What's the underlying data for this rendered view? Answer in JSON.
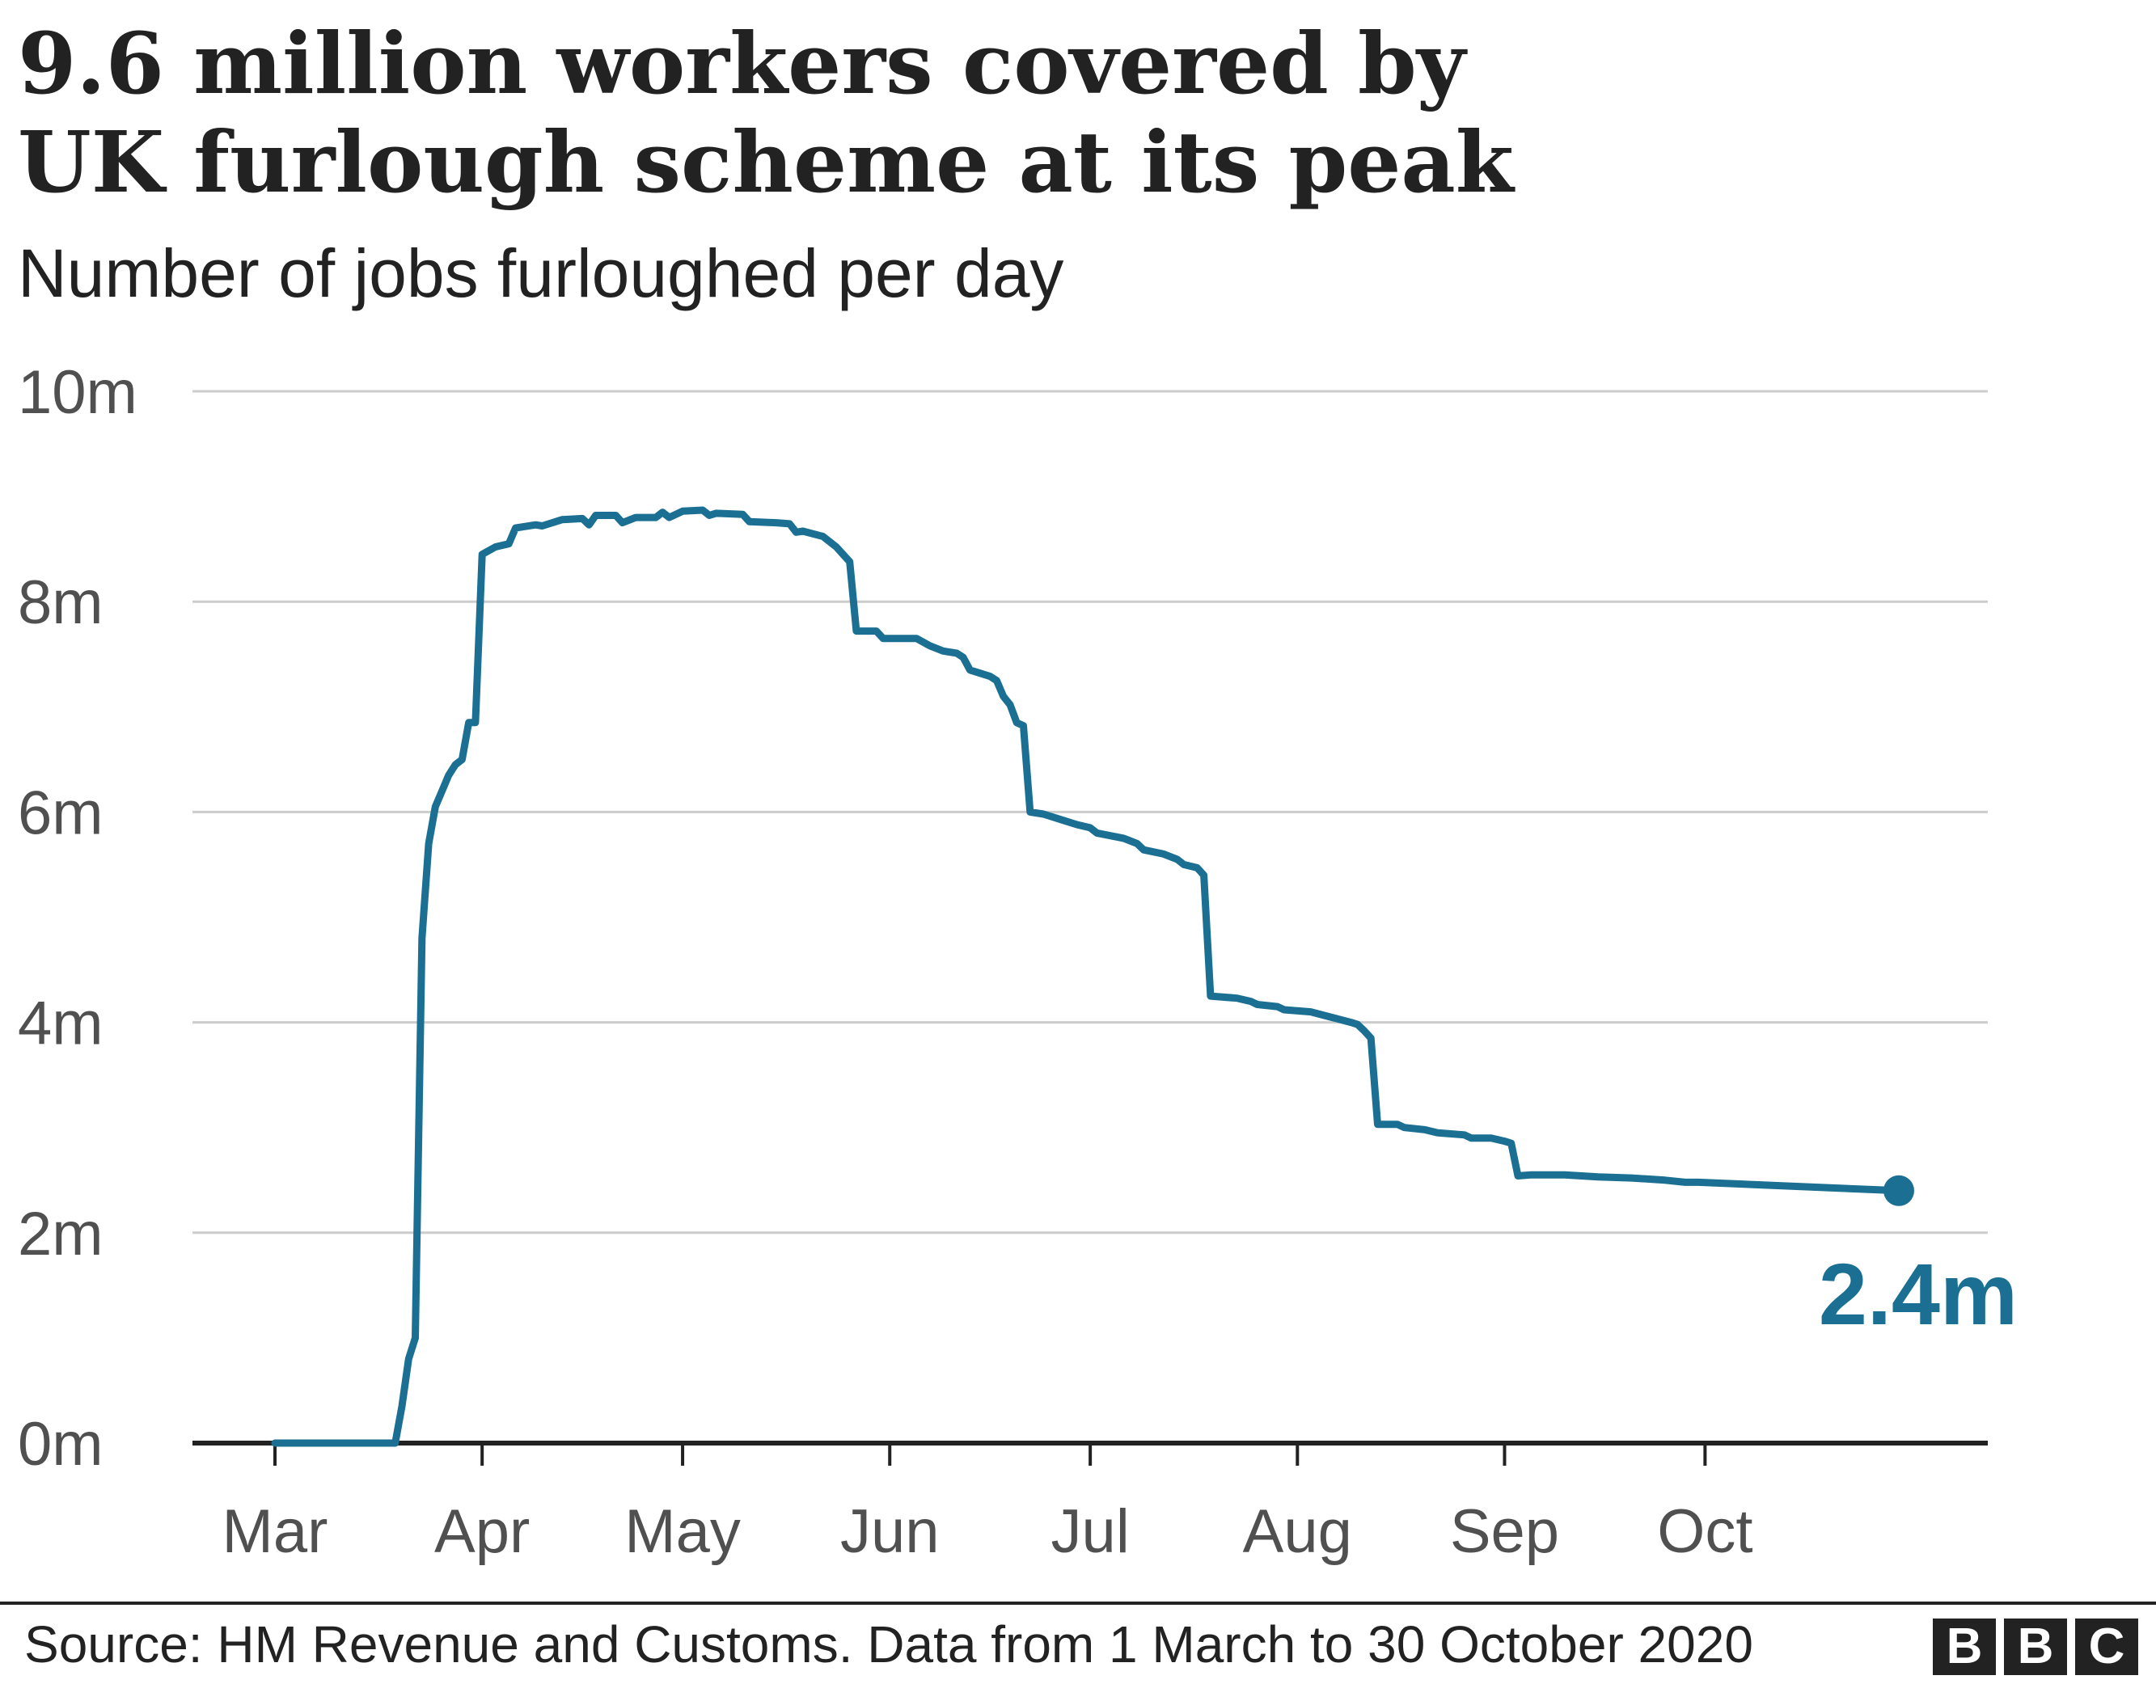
{
  "chart_data": {
    "type": "line",
    "title_lines": [
      "9.6 million workers covered by",
      "UK furlough scheme at its peak"
    ],
    "subtitle": "Number of jobs furloughed per day",
    "ylim": [
      0,
      10
    ],
    "y_ticks": [
      0,
      2,
      4,
      6,
      8,
      10
    ],
    "y_tick_labels": [
      "0m",
      "2m",
      "4m",
      "6m",
      "8m",
      "10m"
    ],
    "grid": true,
    "x_start": "2020-03-01",
    "x_end": "2020-10-30",
    "month_ticks": [
      {
        "label": "Mar",
        "date": "2020-03-01"
      },
      {
        "label": "Apr",
        "date": "2020-04-01"
      },
      {
        "label": "May",
        "date": "2020-05-01"
      },
      {
        "label": "Jun",
        "date": "2020-06-01"
      },
      {
        "label": "Jul",
        "date": "2020-07-01"
      },
      {
        "label": "Aug",
        "date": "2020-08-01"
      },
      {
        "label": "Sep",
        "date": "2020-09-01"
      },
      {
        "label": "Oct",
        "date": "2020-10-01"
      }
    ],
    "series": [
      {
        "color": "#1a6f92",
        "points": [
          [
            "2020-03-01",
            0.0
          ],
          [
            "2020-03-19",
            0.0
          ],
          [
            "2020-03-20",
            0.35
          ],
          [
            "2020-03-21",
            0.8
          ],
          [
            "2020-03-22",
            1.0
          ],
          [
            "2020-03-23",
            4.8
          ],
          [
            "2020-03-24",
            5.7
          ],
          [
            "2020-03-25",
            6.05
          ],
          [
            "2020-03-26",
            6.2
          ],
          [
            "2020-03-27",
            6.35
          ],
          [
            "2020-03-28",
            6.45
          ],
          [
            "2020-03-29",
            6.5
          ],
          [
            "2020-03-30",
            6.85
          ],
          [
            "2020-03-31",
            6.85
          ],
          [
            "2020-04-01",
            8.45
          ],
          [
            "2020-04-03",
            8.52
          ],
          [
            "2020-04-05",
            8.55
          ],
          [
            "2020-04-06",
            8.7
          ],
          [
            "2020-04-09",
            8.73
          ],
          [
            "2020-04-10",
            8.72
          ],
          [
            "2020-04-13",
            8.78
          ],
          [
            "2020-04-16",
            8.79
          ],
          [
            "2020-04-17",
            8.73
          ],
          [
            "2020-04-18",
            8.82
          ],
          [
            "2020-04-21",
            8.82
          ],
          [
            "2020-04-22",
            8.75
          ],
          [
            "2020-04-24",
            8.8
          ],
          [
            "2020-04-27",
            8.8
          ],
          [
            "2020-04-28",
            8.85
          ],
          [
            "2020-04-29",
            8.8
          ],
          [
            "2020-05-01",
            8.86
          ],
          [
            "2020-05-04",
            8.87
          ],
          [
            "2020-05-05",
            8.82
          ],
          [
            "2020-05-06",
            8.84
          ],
          [
            "2020-05-10",
            8.83
          ],
          [
            "2020-05-11",
            8.76
          ],
          [
            "2020-05-15",
            8.75
          ],
          [
            "2020-05-17",
            8.74
          ],
          [
            "2020-05-18",
            8.66
          ],
          [
            "2020-05-19",
            8.67
          ],
          [
            "2020-05-22",
            8.62
          ],
          [
            "2020-05-24",
            8.52
          ],
          [
            "2020-05-26",
            8.38
          ],
          [
            "2020-05-27",
            7.72
          ],
          [
            "2020-05-30",
            7.72
          ],
          [
            "2020-05-31",
            7.65
          ],
          [
            "2020-06-05",
            7.65
          ],
          [
            "2020-06-07",
            7.58
          ],
          [
            "2020-06-09",
            7.53
          ],
          [
            "2020-06-11",
            7.51
          ],
          [
            "2020-06-12",
            7.47
          ],
          [
            "2020-06-13",
            7.35
          ],
          [
            "2020-06-16",
            7.29
          ],
          [
            "2020-06-17",
            7.25
          ],
          [
            "2020-06-18",
            7.1
          ],
          [
            "2020-06-19",
            7.02
          ],
          [
            "2020-06-20",
            6.85
          ],
          [
            "2020-06-21",
            6.82
          ],
          [
            "2020-06-22",
            6.0
          ],
          [
            "2020-06-24",
            5.98
          ],
          [
            "2020-06-27",
            5.92
          ],
          [
            "2020-06-29",
            5.88
          ],
          [
            "2020-07-01",
            5.85
          ],
          [
            "2020-07-02",
            5.8
          ],
          [
            "2020-07-06",
            5.75
          ],
          [
            "2020-07-08",
            5.7
          ],
          [
            "2020-07-09",
            5.64
          ],
          [
            "2020-07-12",
            5.6
          ],
          [
            "2020-07-14",
            5.55
          ],
          [
            "2020-07-15",
            5.5
          ],
          [
            "2020-07-17",
            5.47
          ],
          [
            "2020-07-18",
            5.4
          ],
          [
            "2020-07-19",
            4.25
          ],
          [
            "2020-07-23",
            4.23
          ],
          [
            "2020-07-25",
            4.2
          ],
          [
            "2020-07-26",
            4.17
          ],
          [
            "2020-07-29",
            4.15
          ],
          [
            "2020-07-30",
            4.12
          ],
          [
            "2020-08-03",
            4.1
          ],
          [
            "2020-08-06",
            4.05
          ],
          [
            "2020-08-09",
            4.0
          ],
          [
            "2020-08-10",
            3.98
          ],
          [
            "2020-08-11",
            3.92
          ],
          [
            "2020-08-12",
            3.85
          ],
          [
            "2020-08-13",
            3.03
          ],
          [
            "2020-08-16",
            3.03
          ],
          [
            "2020-08-17",
            3.0
          ],
          [
            "2020-08-20",
            2.98
          ],
          [
            "2020-08-22",
            2.95
          ],
          [
            "2020-08-26",
            2.93
          ],
          [
            "2020-08-27",
            2.9
          ],
          [
            "2020-08-30",
            2.9
          ],
          [
            "2020-09-01",
            2.87
          ],
          [
            "2020-09-02",
            2.85
          ],
          [
            "2020-09-03",
            2.54
          ],
          [
            "2020-09-05",
            2.55
          ],
          [
            "2020-09-10",
            2.55
          ],
          [
            "2020-09-15",
            2.53
          ],
          [
            "2020-09-20",
            2.52
          ],
          [
            "2020-09-25",
            2.5
          ],
          [
            "2020-09-28",
            2.48
          ],
          [
            "2020-09-30",
            2.48
          ],
          [
            "2020-10-30",
            2.4
          ]
        ],
        "end_label": "2.4m"
      }
    ],
    "source": "Source: HM Revenue and Customs. Data from 1 March to 30 October 2020",
    "logo_text": "BBC"
  }
}
